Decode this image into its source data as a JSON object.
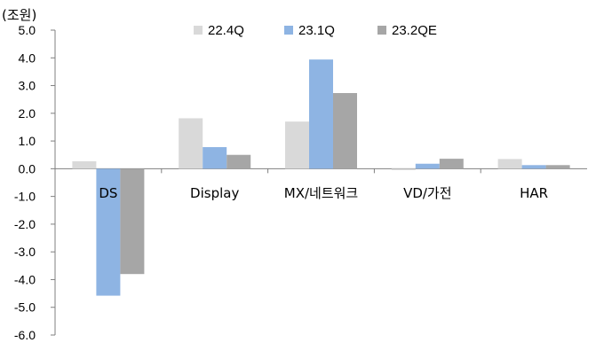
{
  "chart_data": {
    "type": "bar",
    "unit_label": "(조원)",
    "categories": [
      "DS",
      "Display",
      "MX/네트워크",
      "VD/가전",
      "HAR"
    ],
    "series": [
      {
        "name": "22.4Q",
        "color": "#d9d9d9",
        "values": [
          0.27,
          1.82,
          1.7,
          -0.05,
          0.35
        ]
      },
      {
        "name": "23.1Q",
        "color": "#8eb4e3",
        "values": [
          -4.58,
          0.78,
          3.94,
          0.18,
          0.13
        ]
      },
      {
        "name": "23.2QE",
        "color": "#a6a6a6",
        "values": [
          -3.8,
          0.5,
          2.73,
          0.36,
          0.13
        ]
      }
    ],
    "yticks": [
      "5.0",
      "4.0",
      "3.0",
      "2.0",
      "1.0",
      "0.0",
      "-1.0",
      "-2.0",
      "-3.0",
      "-4.0",
      "-5.0",
      "-6.0"
    ],
    "ylim": [
      -6,
      5
    ],
    "grid": false,
    "legend_position": "top"
  }
}
